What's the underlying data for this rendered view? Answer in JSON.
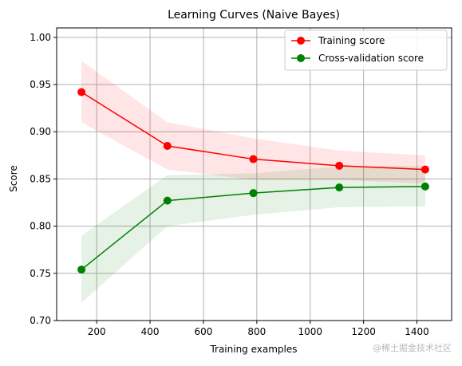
{
  "chart_data": {
    "type": "line",
    "title": "Learning Curves (Naive Bayes)",
    "xlabel": "Training examples",
    "ylabel": "Score",
    "xlim": [
      50,
      1530
    ],
    "ylim": [
      0.7,
      1.01
    ],
    "xticks": [
      200,
      400,
      600,
      800,
      1000,
      1200,
      1400
    ],
    "xtick_labels": [
      "200",
      "400",
      "600",
      "800",
      "1000",
      "1200",
      "1400"
    ],
    "yticks": [
      0.7,
      0.75,
      0.8,
      0.85,
      0.9,
      0.95,
      1.0
    ],
    "ytick_labels": [
      "0.70",
      "0.75",
      "0.80",
      "0.85",
      "0.90",
      "0.95",
      "1.00"
    ],
    "grid": true,
    "legend_position": "top-right",
    "x": [
      143,
      465,
      787,
      1109,
      1431
    ],
    "series": [
      {
        "name": "Training score",
        "color": "#ff0000",
        "band_color": "#ff0000",
        "values": [
          0.942,
          0.885,
          0.871,
          0.864,
          0.86
        ],
        "band_upper": [
          0.975,
          0.91,
          0.893,
          0.88,
          0.875
        ],
        "band_lower": [
          0.91,
          0.86,
          0.849,
          0.849,
          0.845
        ]
      },
      {
        "name": "Cross-validation score",
        "color": "#008000",
        "band_color": "#008000",
        "values": [
          0.754,
          0.827,
          0.835,
          0.841,
          0.842
        ],
        "band_upper": [
          0.79,
          0.854,
          0.856,
          0.863,
          0.864
        ],
        "band_lower": [
          0.719,
          0.8,
          0.812,
          0.82,
          0.821
        ]
      }
    ]
  },
  "watermark": "@稀土掘金技术社区"
}
